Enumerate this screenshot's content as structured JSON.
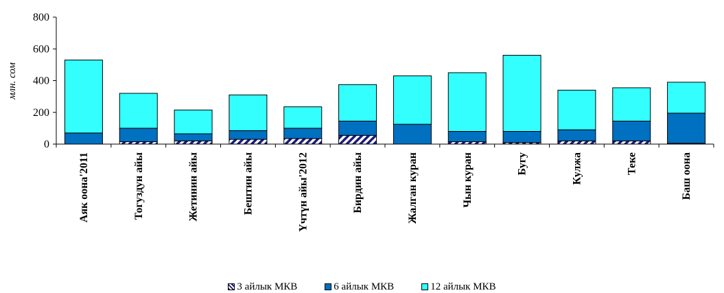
{
  "chart_data": {
    "type": "bar",
    "stacked": true,
    "ylabel": "млн. сом",
    "ylim": [
      0,
      800
    ],
    "yticks": [
      "0",
      "200",
      "400",
      "600",
      "800"
    ],
    "categories": [
      "Аяк оона'2011",
      "Тогуздун айы",
      "Жетинин айы",
      "Бештин айы",
      "Үчтүн айы'2012",
      "Бирдин айы",
      "Жалган куран",
      "Чын куран",
      "Бугу",
      "Кулжа",
      "Теке",
      "Баш оона"
    ],
    "series": [
      {
        "name": "3 айлык МКВ",
        "color": "#ffffff",
        "pattern": "hatch",
        "values": [
          0,
          15,
          20,
          30,
          35,
          55,
          0,
          15,
          10,
          20,
          20,
          5
        ]
      },
      {
        "name": "6 айлык МКВ",
        "color": "#0070c0",
        "values": [
          70,
          85,
          45,
          55,
          65,
          90,
          125,
          65,
          70,
          70,
          125,
          190
        ]
      },
      {
        "name": "12 айлык МКВ",
        "color": "#33ffff",
        "values": [
          460,
          220,
          150,
          225,
          135,
          230,
          305,
          370,
          480,
          250,
          210,
          195
        ]
      }
    ],
    "grid": false,
    "legend_position": "bottom"
  }
}
